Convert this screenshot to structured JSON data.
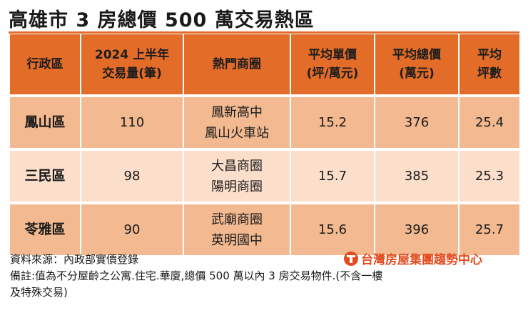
{
  "title": "高雄市 3 房總價 500 萬交易熱區",
  "colors": {
    "accent": "#e36c29",
    "row_dark": "#f3b990",
    "row_light": "#fcdfcb",
    "brand": "#e34b1e"
  },
  "table": {
    "headers": [
      [
        "行政區"
      ],
      [
        "2024 上半年",
        "交易量(筆)"
      ],
      [
        "熱門商圈"
      ],
      [
        "平均單價",
        "(坪/萬元)"
      ],
      [
        "平均總價",
        "(萬元)"
      ],
      [
        "平均",
        "坪數"
      ]
    ],
    "rows": [
      {
        "district": "鳳山區",
        "volume": "110",
        "areas": [
          "鳳新高中",
          "鳳山火車站"
        ],
        "unit_price": "15.2",
        "total_price": "376",
        "size": "25.4"
      },
      {
        "district": "三民區",
        "volume": "98",
        "areas": [
          "大昌商圈",
          "陽明商圈"
        ],
        "unit_price": "15.7",
        "total_price": "385",
        "size": "25.3"
      },
      {
        "district": "苓雅區",
        "volume": "90",
        "areas": [
          "武廟商圈",
          "英明國中"
        ],
        "unit_price": "15.6",
        "total_price": "396",
        "size": "25.7"
      }
    ]
  },
  "footer": {
    "source": "資料來源：內政部實價登錄",
    "note_line1": "備註:值為不分屋齡之公寓.住宅.華廈,總價 500 萬以內 3 房交易物件.(不含一樓",
    "note_line2": "及特殊交易)",
    "brand": "台灣房屋集團趨勢中心",
    "brand_icon": "taiwan-realty-logo-icon"
  }
}
